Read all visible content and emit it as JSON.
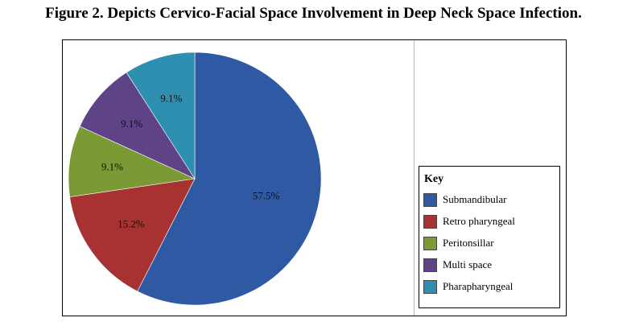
{
  "figure": {
    "title": "Figure 2. Depicts Cervico-Facial Space Involvement in Deep Neck Space Infection."
  },
  "chart_data": {
    "type": "pie",
    "legend_title": "Key",
    "legend_position": "right",
    "categories": [
      "Submandibular",
      "Retro pharyngeal",
      "Peritonsillar",
      "Multi space",
      "Pharapharyngeal"
    ],
    "values": [
      57.5,
      15.2,
      9.1,
      9.1,
      9.1
    ],
    "labels": [
      "57.5%",
      "15.2%",
      "9.1%",
      "9.1%",
      "9.1%"
    ],
    "colors": [
      "#3059a3",
      "#a83232",
      "#7b9a35",
      "#5e4387",
      "#2e8fb0"
    ]
  }
}
